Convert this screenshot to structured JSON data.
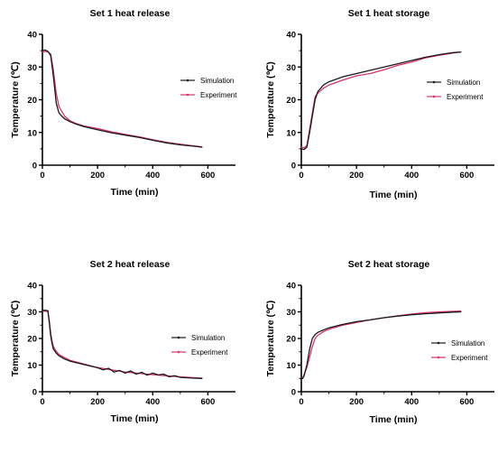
{
  "colors": {
    "simulation": "#1a1a1a",
    "experiment": "#d6336c",
    "axis": "#000000"
  },
  "chart_data": [
    {
      "type": "line",
      "title": "Set 1 heat release",
      "xlabel": "Time (min)",
      "ylabel": "Temperature (℃)",
      "xlim": [
        0,
        700
      ],
      "ylim": [
        0,
        40
      ],
      "xticks": [
        "0",
        "200",
        "400",
        "600"
      ],
      "yticks": [
        "0",
        "10",
        "20",
        "30",
        "40"
      ],
      "grid": false,
      "legend": "right",
      "series": [
        {
          "name": "Simulation",
          "x": [
            0,
            10,
            20,
            30,
            40,
            50,
            60,
            70,
            80,
            100,
            120,
            150,
            200,
            250,
            300,
            350,
            400,
            450,
            500,
            550,
            580
          ],
          "y": [
            35,
            35.2,
            34.8,
            33.5,
            27,
            19,
            16,
            15,
            14.2,
            13.3,
            12.6,
            11.8,
            10.8,
            9.9,
            9.2,
            8.5,
            7.6,
            6.8,
            6.2,
            5.8,
            5.5
          ]
        },
        {
          "name": "Experiment",
          "x": [
            0,
            10,
            20,
            30,
            40,
            50,
            60,
            70,
            80,
            100,
            120,
            150,
            200,
            250,
            300,
            350,
            400,
            450,
            500,
            550,
            580
          ],
          "y": [
            34.5,
            34.8,
            34.6,
            34,
            29,
            22,
            18,
            16.5,
            15,
            13.6,
            12.8,
            12,
            11.2,
            10.2,
            9.4,
            8.7,
            7.8,
            7,
            6.4,
            5.9,
            5.6
          ]
        }
      ]
    },
    {
      "type": "line",
      "title": "Set 1 heat storage",
      "xlabel": "Time (min)",
      "ylabel": "Temperature (℃)",
      "xlim": [
        0,
        700
      ],
      "ylim": [
        0,
        40
      ],
      "xticks": [
        "0",
        "200",
        "400",
        "600"
      ],
      "yticks": [
        "0",
        "10",
        "20",
        "30",
        "40"
      ],
      "grid": false,
      "legend": "right",
      "series": [
        {
          "name": "Simulation",
          "x": [
            0,
            10,
            20,
            30,
            40,
            50,
            60,
            80,
            100,
            150,
            200,
            250,
            300,
            350,
            400,
            450,
            500,
            550,
            580
          ],
          "y": [
            5,
            4.8,
            5.5,
            10,
            15,
            20,
            22.5,
            24.5,
            25.5,
            27,
            28,
            29,
            30,
            31,
            32,
            33,
            33.8,
            34.4,
            34.6
          ]
        },
        {
          "name": "Experiment",
          "x": [
            0,
            10,
            20,
            30,
            40,
            50,
            60,
            80,
            100,
            150,
            200,
            250,
            300,
            350,
            400,
            450,
            500,
            550,
            580
          ],
          "y": [
            5.5,
            5.3,
            6,
            11,
            16,
            21,
            22,
            23.5,
            24.5,
            26,
            27.3,
            28,
            29.2,
            30.5,
            31.5,
            32.8,
            33.6,
            34.3,
            34.6
          ]
        }
      ]
    },
    {
      "type": "line",
      "title": "Set 2 heat release",
      "xlabel": "Time (min)",
      "ylabel": "Temperature (℃)",
      "xlim": [
        0,
        700
      ],
      "ylim": [
        0,
        40
      ],
      "xticks": [
        "0",
        "200",
        "400",
        "600"
      ],
      "yticks": [
        "0",
        "10",
        "20",
        "30",
        "40"
      ],
      "grid": false,
      "legend": "right",
      "series": [
        {
          "name": "Simulation",
          "x": [
            0,
            10,
            20,
            25,
            30,
            35,
            40,
            50,
            60,
            80,
            100,
            150,
            200,
            220,
            240,
            260,
            280,
            300,
            320,
            340,
            360,
            380,
            400,
            420,
            440,
            460,
            480,
            500,
            550,
            580
          ],
          "y": [
            30.5,
            30.6,
            30.4,
            26,
            21,
            18,
            16,
            14.5,
            13.5,
            12.3,
            11.5,
            10.2,
            9,
            8.2,
            8.8,
            7.4,
            8,
            7,
            7.8,
            6.6,
            7.3,
            6.2,
            7,
            6.3,
            6.6,
            5.6,
            6,
            5.4,
            5.1,
            5
          ]
        },
        {
          "name": "Experiment",
          "x": [
            0,
            10,
            20,
            25,
            30,
            35,
            40,
            50,
            60,
            80,
            100,
            150,
            200,
            250,
            300,
            350,
            400,
            450,
            500,
            550,
            580
          ],
          "y": [
            30.2,
            30.3,
            30.1,
            27,
            22,
            19,
            17,
            15.2,
            14,
            12.8,
            11.8,
            10.4,
            9.1,
            8.2,
            7.4,
            6.9,
            6.4,
            6,
            5.6,
            5.3,
            5.1
          ]
        }
      ]
    },
    {
      "type": "line",
      "title": "Set 2 heat storage",
      "xlabel": "Time (min)",
      "ylabel": "Temperature (℃)",
      "xlim": [
        0,
        700
      ],
      "ylim": [
        0,
        40
      ],
      "xticks": [
        "0",
        "200",
        "400",
        "600"
      ],
      "yticks": [
        "0",
        "10",
        "20",
        "30",
        "40"
      ],
      "grid": false,
      "legend": "right",
      "series": [
        {
          "name": "Simulation",
          "x": [
            0,
            5,
            10,
            20,
            30,
            40,
            50,
            60,
            80,
            100,
            150,
            200,
            250,
            300,
            350,
            400,
            450,
            500,
            550,
            580
          ],
          "y": [
            5,
            5,
            6,
            10,
            16,
            20,
            21.5,
            22.3,
            23.2,
            24,
            25.3,
            26.3,
            27,
            27.8,
            28.4,
            28.9,
            29.3,
            29.6,
            29.9,
            30
          ]
        },
        {
          "name": "Experiment",
          "x": [
            0,
            5,
            10,
            20,
            30,
            40,
            50,
            60,
            80,
            100,
            150,
            200,
            250,
            300,
            350,
            400,
            450,
            500,
            550,
            580
          ],
          "y": [
            5,
            5.2,
            6.5,
            9,
            13,
            17,
            20,
            21.2,
            22.5,
            23.5,
            25,
            26,
            27,
            27.8,
            28.5,
            29.2,
            29.7,
            30,
            30.2,
            30.3
          ]
        }
      ]
    }
  ]
}
